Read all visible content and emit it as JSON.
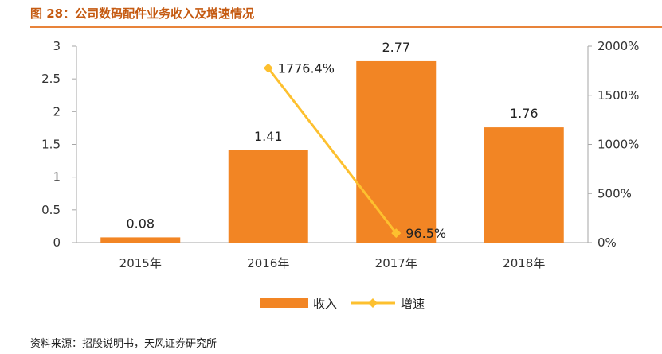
{
  "header": {
    "title": "图 28：公司数码配件业务收入及增速情况"
  },
  "footer": {
    "source": "资料来源：招股说明书，天风证券研究所"
  },
  "chart_data": {
    "type": "bar",
    "categories": [
      "2015年",
      "2016年",
      "2017年",
      "2018年"
    ],
    "series": [
      {
        "name": "收入",
        "type": "bar",
        "axis": "left",
        "values": [
          0.08,
          1.41,
          2.77,
          1.76
        ],
        "labels": [
          "0.08",
          "1.41",
          "2.77",
          "1.76"
        ],
        "color": "#f28524"
      },
      {
        "name": "增速",
        "type": "line",
        "axis": "right",
        "values": [
          null,
          1776.4,
          96.5,
          null
        ],
        "labels": [
          "",
          "1776.4%",
          "96.5%",
          ""
        ],
        "color": "#fdc02f"
      }
    ],
    "left_axis": {
      "ylim": [
        0,
        3
      ],
      "ticks": [
        "0",
        "0.5",
        "1",
        "1.5",
        "2",
        "2.5",
        "3"
      ]
    },
    "right_axis": {
      "ylim": [
        0,
        2000
      ],
      "ticks": [
        "0%",
        "500%",
        "1000%",
        "1500%",
        "2000%"
      ]
    },
    "legend_placement": "bottom",
    "grid": false
  }
}
